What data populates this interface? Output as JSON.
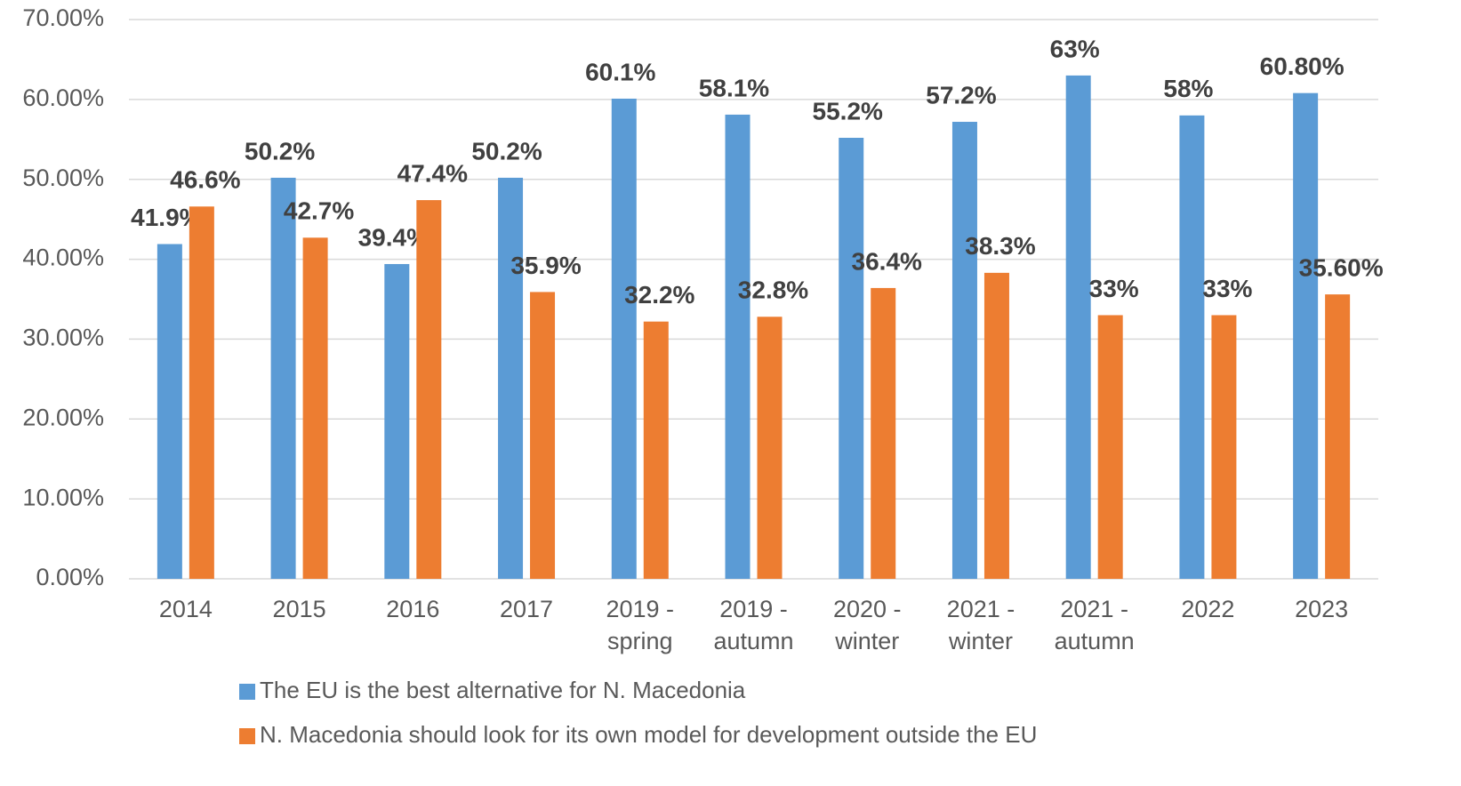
{
  "chart_data": {
    "type": "bar",
    "categories": [
      "2014",
      "2015",
      "2016",
      "2017",
      "2019 - spring",
      "2019 - autumn",
      "2020 - winter",
      "2021 - winter",
      "2021 - autumn",
      "2022",
      "2023"
    ],
    "series": [
      {
        "name": "The EU is the best alternative for N. Macedonia",
        "color": "#5b9bd5",
        "values": [
          41.9,
          50.2,
          39.4,
          50.2,
          60.1,
          58.1,
          55.2,
          57.2,
          63,
          58,
          60.8
        ],
        "value_labels": [
          "41.9%",
          "50.2%",
          "39.4%",
          "50.2%",
          "60.1%",
          "58.1%",
          "55.2%",
          "57.2%",
          "63%",
          "58%",
          "60.80%"
        ]
      },
      {
        "name": "N. Macedonia should look for its own model for development outside the EU",
        "color": "#ed7d31",
        "values": [
          46.6,
          42.7,
          47.4,
          35.9,
          32.2,
          32.8,
          36.4,
          38.3,
          33,
          33,
          35.6
        ],
        "value_labels": [
          "46.6%",
          "42.7%",
          "47.4%",
          "35.9%",
          "32.2%",
          "32.8%",
          "36.4%",
          "38.3%",
          "33%",
          "33%",
          "35.60%"
        ]
      }
    ],
    "ylim": [
      0,
      70
    ],
    "yticks": [
      {
        "value": 0,
        "label": "0.00%"
      },
      {
        "value": 10,
        "label": "10.00%"
      },
      {
        "value": 20,
        "label": "20.00%"
      },
      {
        "value": 30,
        "label": "30.00%"
      },
      {
        "value": 40,
        "label": "40.00%"
      },
      {
        "value": 50,
        "label": "50.00%"
      },
      {
        "value": 60,
        "label": "60.00%"
      },
      {
        "value": 70,
        "label": "70.00%"
      }
    ],
    "grid": true,
    "legend": "bottom"
  }
}
